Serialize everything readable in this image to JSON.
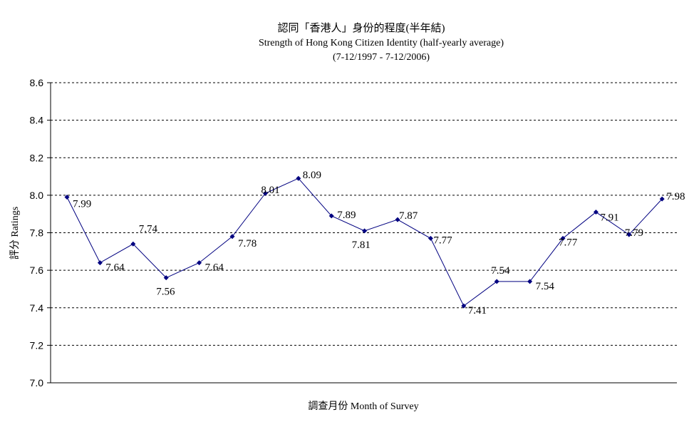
{
  "chart_data": {
    "type": "line",
    "title": "認同「香港人」身份的程度(半年結)",
    "subtitle": "Strength of Hong Kong Citizen Identity (half-yearly average)",
    "subtitle2": "(7-12/1997 - 7-12/2006)",
    "xlabel": "調查月份 Month of Survey",
    "ylabel": "評分 Ratings",
    "ylim": [
      7.0,
      8.6
    ],
    "yticks": [
      "7.0",
      "7.2",
      "7.4",
      "7.6",
      "7.8",
      "8.0",
      "8.2",
      "8.4",
      "8.6"
    ],
    "grid": true,
    "series": [
      {
        "values": [
          7.99,
          7.64,
          7.74,
          7.56,
          7.64,
          7.78,
          8.01,
          8.09,
          7.89,
          7.81,
          7.87,
          7.77,
          7.41,
          7.54,
          7.54,
          7.77,
          7.91,
          7.79,
          7.98
        ],
        "labels": [
          "7.99",
          "7.64",
          "7.74",
          "7.56",
          "7.64",
          "7.78",
          "8.01",
          "8.09",
          "7.89",
          "7.81",
          "7.87",
          "7.77",
          "7.41",
          "7.54",
          "7.54",
          "7.77",
          "7.91",
          "7.79",
          "7.98"
        ],
        "color": "#000080"
      }
    ]
  }
}
